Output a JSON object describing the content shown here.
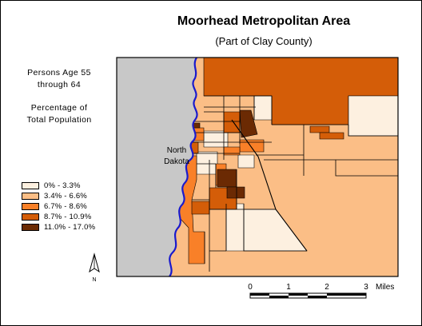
{
  "map": {
    "title": "Moorhead Metropolitan Area",
    "subtitle": "(Part of Clay County)",
    "description_line1": "Persons Age 55",
    "description_line2": "through 64",
    "description_line3": "Percentage of",
    "description_line4": "Total Population",
    "state_label_line1": "North",
    "state_label_line2": "Dakota",
    "north_label": "N",
    "legend": [
      {
        "label": "0% - 3.3%",
        "color": "#fdf0e0"
      },
      {
        "label": "3.4% - 6.6%",
        "color": "#fbbe86"
      },
      {
        "label": "6.7% - 8.6%",
        "color": "#f98028"
      },
      {
        "label": "8.7% - 10.9%",
        "color": "#d45d08"
      },
      {
        "label": "11.0% - 17.0%",
        "color": "#6b2a03"
      }
    ],
    "scale": {
      "ticks": [
        "0",
        "1",
        "2",
        "3"
      ],
      "unit": "Miles"
    },
    "colors": {
      "nd_land": "#c8c8c8",
      "river": "#1a1acc",
      "road": "#000000",
      "boundary": "#000000"
    }
  }
}
